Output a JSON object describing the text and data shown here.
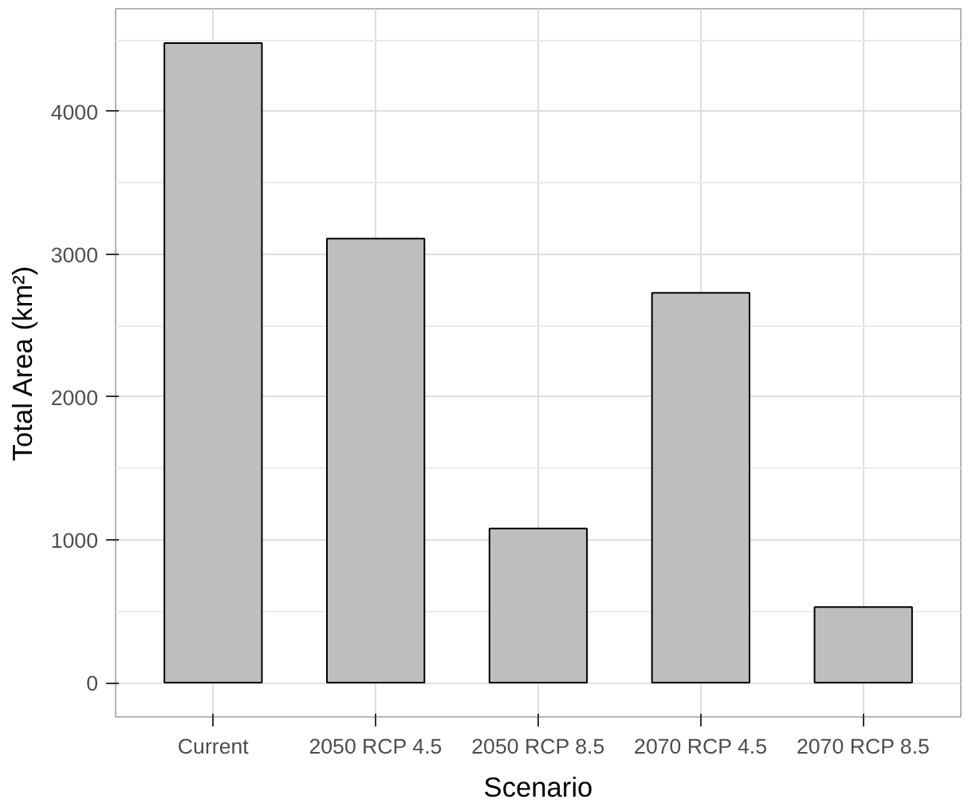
{
  "chart_data": {
    "type": "bar",
    "xlabel": "Scenario",
    "ylabel": "Total Area (km²)",
    "categories": [
      "Current",
      "2050 RCP 4.5",
      "2050 RCP 8.5",
      "2070 RCP 4.5",
      "2070 RCP 8.5"
    ],
    "values": [
      4480,
      3110,
      1080,
      2730,
      530
    ],
    "color": "#bebebe",
    "ylim": [
      -240,
      4720
    ],
    "yticks": [
      0,
      1000,
      2000,
      3000,
      4000
    ],
    "grid": true
  }
}
